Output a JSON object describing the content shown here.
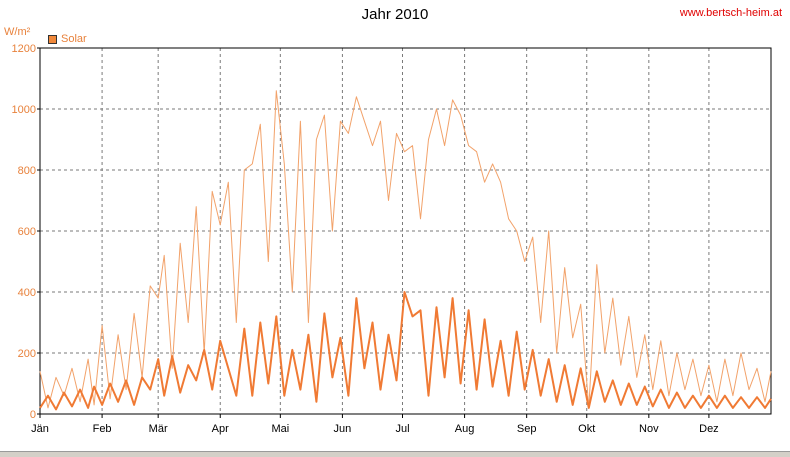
{
  "header": {
    "title": "Jahr 2010",
    "site": "www.bertsch-heim.at"
  },
  "chart_data": {
    "type": "line",
    "title": "Jahr 2010",
    "ylabel": "W/m²",
    "ylim": [
      0,
      1200
    ],
    "yticks": [
      0,
      200,
      400,
      600,
      800,
      1000,
      1200
    ],
    "xlim": [
      0,
      365
    ],
    "xticks": [
      {
        "label": "Jän",
        "day": 0
      },
      {
        "label": "Feb",
        "day": 31
      },
      {
        "label": "Mär",
        "day": 59
      },
      {
        "label": "Apr",
        "day": 90
      },
      {
        "label": "Mai",
        "day": 120
      },
      {
        "label": "Jun",
        "day": 151
      },
      {
        "label": "Jul",
        "day": 181
      },
      {
        "label": "Aug",
        "day": 212
      },
      {
        "label": "Sep",
        "day": 243
      },
      {
        "label": "Okt",
        "day": 273
      },
      {
        "label": "Nov",
        "day": 304
      },
      {
        "label": "Dez",
        "day": 334
      }
    ],
    "grid": true,
    "legend": "top-left",
    "series": [
      {
        "name": "Solar",
        "role": "daily-max",
        "color": "#f2a26a",
        "x": [
          0,
          4,
          8,
          12,
          16,
          20,
          24,
          27,
          31,
          35,
          39,
          43,
          47,
          51,
          55,
          59,
          62,
          66,
          70,
          74,
          78,
          82,
          86,
          90,
          94,
          98,
          102,
          106,
          110,
          114,
          118,
          122,
          126,
          130,
          134,
          138,
          142,
          146,
          150,
          154,
          158,
          162,
          166,
          170,
          174,
          178,
          182,
          186,
          190,
          194,
          198,
          202,
          206,
          210,
          214,
          218,
          222,
          226,
          230,
          234,
          238,
          242,
          246,
          250,
          254,
          258,
          262,
          266,
          270,
          274,
          278,
          282,
          286,
          290,
          294,
          298,
          302,
          306,
          310,
          314,
          318,
          322,
          326,
          330,
          334,
          338,
          342,
          346,
          350,
          354,
          358,
          362,
          365
        ],
        "y": [
          140,
          20,
          120,
          60,
          150,
          40,
          180,
          30,
          290,
          50,
          260,
          80,
          330,
          120,
          420,
          380,
          520,
          150,
          560,
          300,
          680,
          200,
          730,
          620,
          760,
          300,
          800,
          820,
          950,
          500,
          1060,
          820,
          400,
          960,
          300,
          900,
          980,
          600,
          960,
          920,
          1040,
          960,
          880,
          960,
          700,
          920,
          860,
          880,
          640,
          900,
          1000,
          880,
          1030,
          980,
          880,
          860,
          760,
          820,
          760,
          640,
          600,
          500,
          580,
          300,
          600,
          200,
          480,
          250,
          360,
          20,
          490,
          200,
          380,
          160,
          320,
          120,
          260,
          80,
          240,
          60,
          200,
          80,
          180,
          60,
          160,
          40,
          180,
          60,
          200,
          80,
          150,
          40,
          140
        ]
      },
      {
        "name": "Solar",
        "role": "daily-mean",
        "color": "#f07a34",
        "x": [
          0,
          4,
          8,
          12,
          16,
          20,
          24,
          27,
          31,
          35,
          39,
          43,
          47,
          51,
          55,
          59,
          62,
          66,
          70,
          74,
          78,
          82,
          86,
          90,
          94,
          98,
          102,
          106,
          110,
          114,
          118,
          122,
          126,
          130,
          134,
          138,
          142,
          146,
          150,
          154,
          158,
          162,
          166,
          170,
          174,
          178,
          182,
          186,
          190,
          194,
          198,
          202,
          206,
          210,
          214,
          218,
          222,
          226,
          230,
          234,
          238,
          242,
          246,
          250,
          254,
          258,
          262,
          266,
          270,
          274,
          278,
          282,
          286,
          290,
          294,
          298,
          302,
          306,
          310,
          314,
          318,
          322,
          326,
          330,
          334,
          338,
          342,
          346,
          350,
          354,
          358,
          362,
          365
        ],
        "y": [
          20,
          60,
          15,
          70,
          25,
          80,
          20,
          90,
          30,
          100,
          40,
          110,
          30,
          120,
          80,
          180,
          60,
          190,
          70,
          160,
          110,
          210,
          80,
          240,
          150,
          60,
          280,
          60,
          300,
          100,
          320,
          60,
          210,
          80,
          260,
          40,
          330,
          120,
          250,
          60,
          380,
          150,
          300,
          80,
          260,
          110,
          400,
          320,
          340,
          60,
          350,
          120,
          380,
          100,
          340,
          80,
          310,
          90,
          240,
          60,
          270,
          80,
          210,
          60,
          180,
          40,
          160,
          30,
          150,
          20,
          140,
          40,
          110,
          30,
          100,
          30,
          90,
          25,
          80,
          20,
          70,
          20,
          60,
          20,
          60,
          20,
          60,
          20,
          55,
          20,
          55,
          20,
          50
        ]
      }
    ]
  }
}
